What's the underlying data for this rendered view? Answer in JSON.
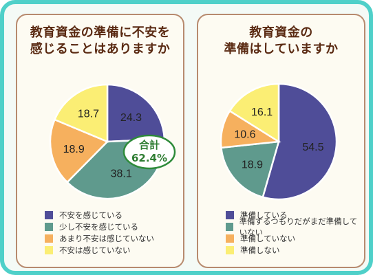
{
  "panels": [
    {
      "title_line1": "教育資金の準備に不安を",
      "title_line2": "感じることはありますか",
      "total": {
        "label": "合計",
        "value": "62.4%"
      }
    },
    {
      "title_line1": "教育資金の",
      "title_line2": "準備はしていますか"
    }
  ],
  "chart_data": [
    {
      "type": "pie",
      "title": "教育資金の準備に不安を感じることはありますか",
      "slices": [
        {
          "label": "不安を感じている",
          "value": 24.3,
          "color": "#4f4d98"
        },
        {
          "label": "少し不安を感じている",
          "value": 38.1,
          "color": "#5f9a8d"
        },
        {
          "label": "あまり不安は感じていない",
          "value": 18.9,
          "color": "#f6b05e"
        },
        {
          "label": "不安は感じていない",
          "value": 18.7,
          "color": "#fbee74"
        }
      ]
    },
    {
      "type": "pie",
      "title": "教育資金の準備はしていますか",
      "slices": [
        {
          "label": "準備している",
          "value": 54.5,
          "color": "#4f4d98"
        },
        {
          "label": "準備するつもりだがまだ準備していない",
          "value": 18.9,
          "color": "#5f9a8d"
        },
        {
          "label": "準備していない",
          "value": 10.6,
          "color": "#f6b05e"
        },
        {
          "label": "準備しない",
          "value": 16.1,
          "color": "#fbee74"
        }
      ]
    }
  ]
}
